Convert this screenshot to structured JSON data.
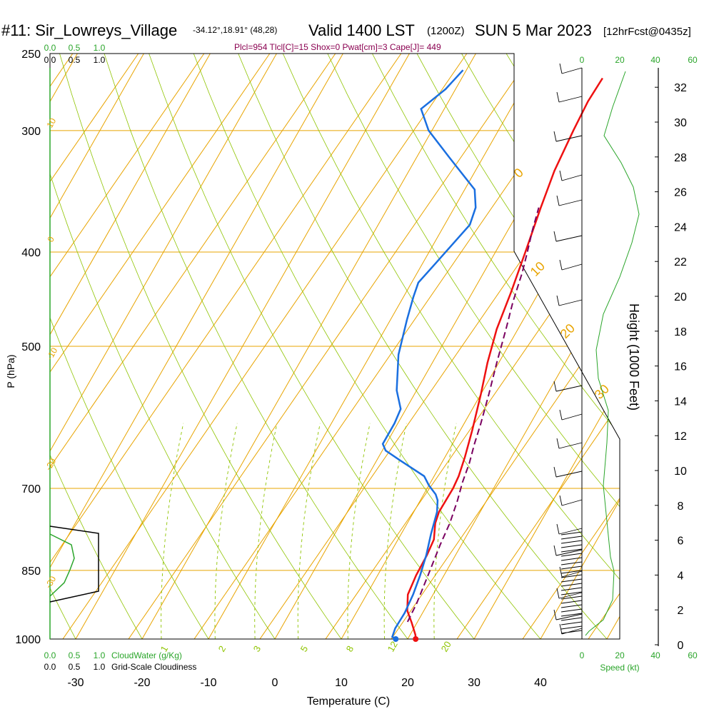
{
  "header": {
    "station": "#11: Sir_Lowreys_Village",
    "coords": "-34.12°,18.91° (48,28)",
    "valid": "Valid 1400 LST",
    "zulu": "(1200Z)",
    "date": "SUN 5 Mar 2023",
    "forecast": "[12hrFcst@0435z]",
    "indices": "Plcl=954 Tlcl[C]=15 Shox=0 Pwat[cm]=3 Cape[J]= 449"
  },
  "colors": {
    "temperature": "#ee1111",
    "dewpoint": "#1a6fe0",
    "parcel": "#7a0060",
    "isotherm": "#e8a400",
    "dry_adiabat": "#8fc400",
    "mixing_ratio": "#8fc400",
    "cloudwater": "#2aa52a",
    "indices_text": "#8a0050"
  },
  "chart_data": {
    "type": "line",
    "title": "",
    "xlabel": "Temperature (C)",
    "ylabel": "P (hPa)",
    "xlim": [
      -34,
      44
    ],
    "ylim": [
      1000,
      250
    ],
    "x_ticks": [
      "-30",
      "-20",
      "-10",
      "0",
      "10",
      "20",
      "30",
      "40"
    ],
    "pressure_ticks": [
      "250",
      "300",
      "400",
      "500",
      "700",
      "850",
      "1000"
    ],
    "height_axis": {
      "label": "Height (1000 Feet)",
      "ticks": [
        "0",
        "2",
        "4",
        "6",
        "8",
        "10",
        "12",
        "14",
        "16",
        "18",
        "20",
        "22",
        "24",
        "26",
        "28",
        "30",
        "32"
      ]
    },
    "mixing_ratio_labels": [
      "1",
      "2",
      "3",
      "5",
      "8",
      "12",
      "20"
    ],
    "isotherm_labels": [
      "10",
      "0",
      "-10",
      "-20",
      "-30",
      "0",
      "10",
      "20",
      "30"
    ],
    "series": [
      {
        "name": "Temperature",
        "points": [
          [
            21.2,
            1000
          ],
          [
            20.8,
            990
          ],
          [
            19.2,
            962
          ],
          [
            17.5,
            935
          ],
          [
            16.2,
            900
          ],
          [
            15.8,
            860
          ],
          [
            15.7,
            820
          ],
          [
            15.4,
            790
          ],
          [
            14.2,
            760
          ],
          [
            13.8,
            740
          ],
          [
            13.9,
            700
          ],
          [
            13.7,
            680
          ],
          [
            13.0,
            650
          ],
          [
            11.8,
            610
          ],
          [
            10.0,
            560
          ],
          [
            8.3,
            520
          ],
          [
            6.8,
            480
          ],
          [
            5.8,
            440
          ],
          [
            4.5,
            400
          ],
          [
            3.0,
            360
          ],
          [
            1.9,
            330
          ],
          [
            1.3,
            300
          ],
          [
            1.0,
            280
          ],
          [
            1.2,
            265
          ]
        ]
      },
      {
        "name": "Dewpoint",
        "points": [
          [
            18.2,
            1000
          ],
          [
            17.5,
            995
          ],
          [
            17.2,
            975
          ],
          [
            17.3,
            940
          ],
          [
            17.0,
            900
          ],
          [
            16.4,
            860
          ],
          [
            15.6,
            820
          ],
          [
            14.5,
            780
          ],
          [
            13.5,
            740
          ],
          [
            12.6,
            720
          ],
          [
            11.8,
            710
          ],
          [
            10.0,
            695
          ],
          [
            8.5,
            680
          ],
          [
            3.5,
            655
          ],
          [
            0.5,
            640
          ],
          [
            -0.5,
            630
          ],
          [
            -0.5,
            600
          ],
          [
            -0.8,
            580
          ],
          [
            -3.0,
            555
          ],
          [
            -5.8,
            510
          ],
          [
            -7.5,
            470
          ],
          [
            -8.5,
            445
          ],
          [
            -9.0,
            430
          ],
          [
            -8.0,
            410
          ],
          [
            -6.2,
            375
          ],
          [
            -6.8,
            360
          ],
          [
            -8.5,
            345
          ],
          [
            -15.0,
            320
          ],
          [
            -20.5,
            300
          ],
          [
            -23.5,
            285
          ],
          [
            -21.5,
            272
          ],
          [
            -20.5,
            260
          ]
        ]
      },
      {
        "name": "Parcel",
        "points": [
          [
            18.5,
            960
          ],
          [
            18.3,
            920
          ],
          [
            17.6,
            860
          ],
          [
            16.8,
            800
          ],
          [
            16.4,
            760
          ],
          [
            15.6,
            720
          ],
          [
            14.8,
            690
          ],
          [
            14.2,
            660
          ],
          [
            13.3,
            630
          ],
          [
            12.5,
            600
          ],
          [
            11.2,
            560
          ],
          [
            9.7,
            520
          ],
          [
            8.2,
            480
          ],
          [
            6.9,
            450
          ],
          [
            5.8,
            420
          ],
          [
            4.8,
            400
          ],
          [
            3.7,
            380
          ],
          [
            2.7,
            360
          ]
        ]
      }
    ],
    "cloud_panel": {
      "axis_ticks": [
        "0.0",
        "0.5",
        "1.0"
      ],
      "cloudwater_label": "CloudWater (g/Kg)",
      "cloudiness_label": "Grid-Scale Cloudiness"
    },
    "wind_speed_panel": {
      "axis_ticks": [
        "0",
        "20",
        "40",
        "60"
      ],
      "label": "Speed (kt)"
    }
  }
}
